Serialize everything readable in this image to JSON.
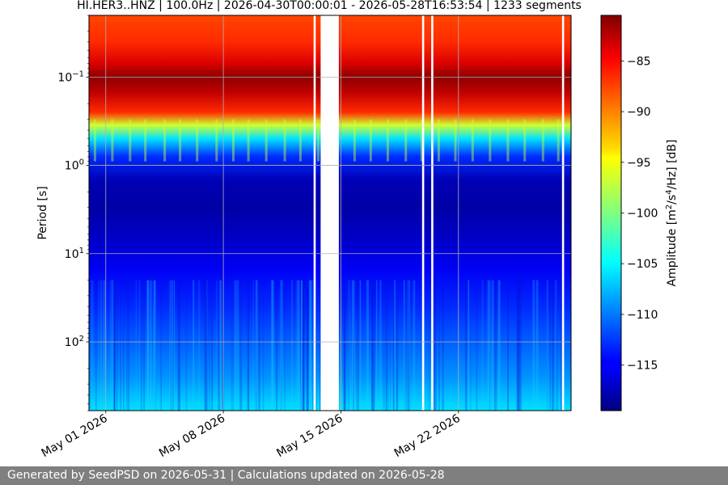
{
  "chart_data": {
    "type": "heatmap",
    "title": "HI.HER3..HNZ | 100.0Hz | 2026-04-30T00:00:01 - 2026-05-28T16:53:54 | 1233 segments",
    "ylabel": "Period [s]",
    "y_scale": "log",
    "y_inverted": true,
    "ylim": [
      0.02,
      600
    ],
    "y_ticks": [
      0.1,
      1,
      10,
      100
    ],
    "y_tick_labels": [
      "10^-1",
      "10^0",
      "10^1",
      "10^2"
    ],
    "x_ticks": [
      "2026-05-01",
      "2026-05-08",
      "2026-05-15",
      "2026-05-22"
    ],
    "x_tick_labels": [
      "May 01 2026",
      "May 08 2026",
      "May 15 2026",
      "May 22 2026"
    ],
    "xlim": [
      "2026-04-30T00:00:01",
      "2026-05-28T16:53:54"
    ],
    "grid": true,
    "colormap": "jet",
    "colorbar": {
      "label": "Amplitude [m^2/s^4/Hz] [dB]",
      "range": [
        -119.5,
        -80.5
      ],
      "ticks": [
        -85,
        -90,
        -95,
        -100,
        -105,
        -110,
        -115
      ],
      "tick_labels": [
        "−85",
        "−90",
        "−95",
        "−100",
        "−105",
        "−110",
        "−115"
      ]
    },
    "data_gaps": [
      [
        "2026-05-13T09:00",
        "2026-05-13T12:00"
      ],
      [
        "2026-05-13T19:00",
        "2026-05-14T21:00"
      ],
      [
        "2026-05-19T20:00",
        "2026-05-19T23:00"
      ],
      [
        "2026-05-20T09:00",
        "2026-05-20T12:00"
      ],
      [
        "2026-05-28T04:00",
        "2026-05-28T07:00"
      ]
    ],
    "profile": {
      "period_s": [
        0.02,
        0.04,
        0.07,
        0.1,
        0.15,
        0.25,
        0.35,
        0.5,
        0.8,
        1.5,
        3,
        6,
        15,
        40,
        100,
        250,
        600
      ],
      "amplitude_db": [
        -88,
        -87,
        -84,
        -81,
        -83,
        -87,
        -97,
        -106,
        -113,
        -117.5,
        -118,
        -117,
        -115,
        -113,
        -111,
        -109,
        -106
      ]
    }
  },
  "footer": {
    "text": "Generated by SeedPSD on 2026-05-31 | Calculations updated on 2026-05-28"
  }
}
